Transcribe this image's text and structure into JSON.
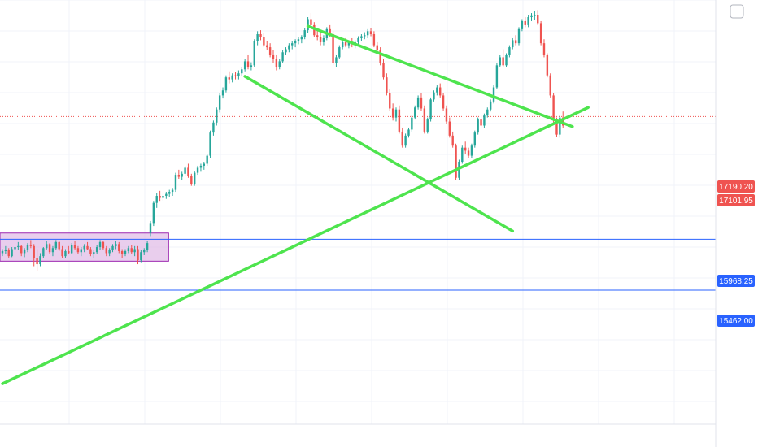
{
  "colors": {
    "bull": "#26a69a",
    "bear": "#ef5350",
    "trendline": "#4ee44e",
    "level_line": "#2962ff",
    "range_box_fill": "#e1bee7",
    "range_box_stroke": "#9c27b0",
    "grid": "#f0f3fa",
    "price_label_red": "#ef5350",
    "price_label_blue": "#2962ff"
  },
  "price_labels": {
    "current_high": "17190.20",
    "current_low": "17101.95",
    "level_upper": "15968.25",
    "level_lower": "15462.00"
  },
  "chart_data": {
    "type": "candlestick",
    "title": "",
    "xlabel": "",
    "ylabel": "",
    "ylim": [
      13900,
      18350
    ],
    "grid": true,
    "horizontal_levels": [
      15968.25,
      15462.0
    ],
    "current_price_line": 17190.2,
    "range_box": {
      "x_start": 0,
      "x_end": 52,
      "y_low": 15750,
      "y_high": 16030
    },
    "trendlines": [
      {
        "name": "",
        "from": [
          0,
          14530
        ],
        "to": [
          186,
          17280
        ]
      },
      {
        "name": "",
        "from": [
          97,
          18090
        ],
        "to": [
          181,
          17090
        ]
      },
      {
        "name": "",
        "from": [
          77,
          17590
        ],
        "to": [
          162,
          16050
        ]
      }
    ],
    "candles": [
      [
        15830,
        15870,
        15800,
        15850
      ],
      [
        15850,
        15900,
        15820,
        15860
      ],
      [
        15860,
        15880,
        15780,
        15800
      ],
      [
        15800,
        15890,
        15790,
        15870
      ],
      [
        15870,
        15920,
        15840,
        15890
      ],
      [
        15890,
        15940,
        15860,
        15900
      ],
      [
        15900,
        15910,
        15800,
        15830
      ],
      [
        15830,
        15880,
        15790,
        15860
      ],
      [
        15860,
        15930,
        15840,
        15910
      ],
      [
        15910,
        15960,
        15880,
        15900
      ],
      [
        15900,
        15920,
        15700,
        15780
      ],
      [
        15780,
        15870,
        15650,
        15720
      ],
      [
        15720,
        15830,
        15700,
        15800
      ],
      [
        15800,
        15890,
        15780,
        15880
      ],
      [
        15880,
        15950,
        15860,
        15920
      ],
      [
        15920,
        15930,
        15820,
        15840
      ],
      [
        15840,
        15900,
        15800,
        15880
      ],
      [
        15880,
        15960,
        15860,
        15940
      ],
      [
        15940,
        15950,
        15850,
        15870
      ],
      [
        15870,
        15900,
        15780,
        15800
      ],
      [
        15800,
        15870,
        15780,
        15850
      ],
      [
        15850,
        15900,
        15820,
        15830
      ],
      [
        15830,
        15930,
        15820,
        15910
      ],
      [
        15910,
        15950,
        15860,
        15880
      ],
      [
        15880,
        15900,
        15820,
        15840
      ],
      [
        15840,
        15890,
        15800,
        15870
      ],
      [
        15870,
        15920,
        15840,
        15900
      ],
      [
        15900,
        15940,
        15860,
        15870
      ],
      [
        15870,
        15890,
        15800,
        15820
      ],
      [
        15820,
        15860,
        15780,
        15840
      ],
      [
        15840,
        15910,
        15820,
        15890
      ],
      [
        15890,
        15960,
        15860,
        15940
      ],
      [
        15940,
        15950,
        15860,
        15880
      ],
      [
        15880,
        15900,
        15800,
        15830
      ],
      [
        15830,
        15880,
        15800,
        15860
      ],
      [
        15860,
        15920,
        15840,
        15900
      ],
      [
        15900,
        15950,
        15870,
        15920
      ],
      [
        15920,
        15940,
        15830,
        15850
      ],
      [
        15850,
        15870,
        15780,
        15820
      ],
      [
        15820,
        15870,
        15800,
        15850
      ],
      [
        15850,
        15900,
        15830,
        15880
      ],
      [
        15880,
        15910,
        15820,
        15840
      ],
      [
        15840,
        15900,
        15800,
        15870
      ],
      [
        15870,
        15900,
        15720,
        15760
      ],
      [
        15760,
        15860,
        15740,
        15840
      ],
      [
        15840,
        15880,
        15810,
        15860
      ],
      [
        15860,
        15950,
        15840,
        15930
      ],
      [
        16030,
        16150,
        16000,
        16130
      ],
      [
        16130,
        16350,
        16100,
        16330
      ],
      [
        16330,
        16430,
        16280,
        16400
      ],
      [
        16400,
        16450,
        16350,
        16380
      ],
      [
        16380,
        16420,
        16350,
        16400
      ],
      [
        16400,
        16440,
        16370,
        16420
      ],
      [
        16420,
        16460,
        16390,
        16440
      ],
      [
        16440,
        16480,
        16400,
        16460
      ],
      [
        16460,
        16630,
        16440,
        16610
      ],
      [
        16610,
        16660,
        16570,
        16590
      ],
      [
        16590,
        16640,
        16560,
        16620
      ],
      [
        16620,
        16700,
        16600,
        16680
      ],
      [
        16680,
        16720,
        16580,
        16600
      ],
      [
        16600,
        16620,
        16500,
        16520
      ],
      [
        16520,
        16650,
        16500,
        16630
      ],
      [
        16630,
        16700,
        16610,
        16680
      ],
      [
        16680,
        16720,
        16640,
        16700
      ],
      [
        16700,
        16740,
        16660,
        16720
      ],
      [
        16720,
        16820,
        16700,
        16800
      ],
      [
        16800,
        17050,
        16780,
        17030
      ],
      [
        17030,
        17150,
        17000,
        17130
      ],
      [
        17130,
        17280,
        17100,
        17260
      ],
      [
        17260,
        17420,
        17230,
        17400
      ],
      [
        17400,
        17480,
        17370,
        17450
      ],
      [
        17450,
        17600,
        17430,
        17580
      ],
      [
        17580,
        17640,
        17520,
        17560
      ],
      [
        17560,
        17620,
        17530,
        17600
      ],
      [
        17600,
        17630,
        17560,
        17590
      ],
      [
        17590,
        17650,
        17560,
        17620
      ],
      [
        17620,
        17680,
        17590,
        17660
      ],
      [
        17660,
        17760,
        17640,
        17740
      ],
      [
        17740,
        17800,
        17660,
        17680
      ],
      [
        17680,
        17730,
        17650,
        17700
      ],
      [
        17700,
        17960,
        17680,
        17940
      ],
      [
        17940,
        18040,
        17900,
        18010
      ],
      [
        18010,
        18050,
        17950,
        17980
      ],
      [
        17980,
        18020,
        17880,
        17900
      ],
      [
        17900,
        17940,
        17850,
        17880
      ],
      [
        17880,
        17920,
        17780,
        17800
      ],
      [
        17800,
        17850,
        17720,
        17760
      ],
      [
        17760,
        17800,
        17650,
        17680
      ],
      [
        17680,
        17760,
        17660,
        17740
      ],
      [
        17740,
        17850,
        17720,
        17830
      ],
      [
        17830,
        17880,
        17800,
        17860
      ],
      [
        17860,
        17920,
        17830,
        17900
      ],
      [
        17900,
        17940,
        17860,
        17920
      ],
      [
        17920,
        17960,
        17880,
        17940
      ],
      [
        17940,
        17980,
        17910,
        17960
      ],
      [
        17960,
        18000,
        17920,
        17980
      ],
      [
        17980,
        18070,
        17960,
        18050
      ],
      [
        18050,
        18180,
        18020,
        18160
      ],
      [
        18160,
        18220,
        18080,
        18100
      ],
      [
        18100,
        18130,
        17980,
        18000
      ],
      [
        18000,
        18050,
        17950,
        17980
      ],
      [
        17980,
        18020,
        17900,
        17930
      ],
      [
        17930,
        18000,
        17900,
        17970
      ],
      [
        17970,
        18080,
        17950,
        18060
      ],
      [
        18060,
        18100,
        17980,
        18010
      ],
      [
        18010,
        18040,
        17700,
        17720
      ],
      [
        17720,
        17800,
        17680,
        17780
      ],
      [
        17780,
        17900,
        17760,
        17880
      ],
      [
        17880,
        17950,
        17860,
        17930
      ],
      [
        17930,
        17970,
        17880,
        17900
      ],
      [
        17900,
        17950,
        17870,
        17930
      ],
      [
        17930,
        17970,
        17880,
        17910
      ],
      [
        17910,
        17950,
        17870,
        17930
      ],
      [
        17930,
        17990,
        17900,
        17970
      ],
      [
        17970,
        18010,
        17940,
        17990
      ],
      [
        17990,
        18030,
        17960,
        18000
      ],
      [
        18000,
        18060,
        17970,
        18040
      ],
      [
        18040,
        18070,
        17990,
        18010
      ],
      [
        18010,
        18040,
        17880,
        17900
      ],
      [
        17900,
        17930,
        17820,
        17850
      ],
      [
        17850,
        17880,
        17700,
        17720
      ],
      [
        17720,
        17760,
        17560,
        17580
      ],
      [
        17580,
        17620,
        17400,
        17420
      ],
      [
        17420,
        17460,
        17250,
        17270
      ],
      [
        17270,
        17320,
        17150,
        17180
      ],
      [
        17180,
        17280,
        17140,
        17260
      ],
      [
        17260,
        17300,
        17020,
        17040
      ],
      [
        17040,
        17080,
        16880,
        16900
      ],
      [
        16900,
        17020,
        16880,
        17000
      ],
      [
        17000,
        17080,
        16980,
        17060
      ],
      [
        17060,
        17200,
        17040,
        17180
      ],
      [
        17180,
        17300,
        17160,
        17280
      ],
      [
        17280,
        17400,
        17260,
        17380
      ],
      [
        17380,
        17420,
        17250,
        17270
      ],
      [
        17270,
        17300,
        17020,
        17040
      ],
      [
        17040,
        17180,
        17020,
        17160
      ],
      [
        17160,
        17380,
        17140,
        17360
      ],
      [
        17360,
        17450,
        17340,
        17430
      ],
      [
        17430,
        17500,
        17400,
        17480
      ],
      [
        17480,
        17520,
        17380,
        17400
      ],
      [
        17400,
        17420,
        17250,
        17270
      ],
      [
        17270,
        17300,
        17120,
        17140
      ],
      [
        17140,
        17180,
        16980,
        17000
      ],
      [
        17000,
        17040,
        16880,
        16900
      ],
      [
        16900,
        16920,
        16560,
        16580
      ],
      [
        16580,
        16760,
        16560,
        16740
      ],
      [
        16740,
        16900,
        16720,
        16880
      ],
      [
        16880,
        16940,
        16820,
        16850
      ],
      [
        16850,
        16880,
        16780,
        16800
      ],
      [
        16800,
        16920,
        16780,
        16900
      ],
      [
        16900,
        17050,
        16880,
        17030
      ],
      [
        17030,
        17180,
        17010,
        17160
      ],
      [
        17160,
        17200,
        17080,
        17100
      ],
      [
        17100,
        17220,
        17080,
        17200
      ],
      [
        17200,
        17280,
        17180,
        17260
      ],
      [
        17260,
        17360,
        17240,
        17340
      ],
      [
        17340,
        17500,
        17320,
        17480
      ],
      [
        17480,
        17720,
        17460,
        17700
      ],
      [
        17700,
        17800,
        17680,
        17780
      ],
      [
        17780,
        17860,
        17680,
        17700
      ],
      [
        17700,
        17820,
        17680,
        17800
      ],
      [
        17800,
        17900,
        17780,
        17880
      ],
      [
        17880,
        17970,
        17860,
        17950
      ],
      [
        17950,
        18000,
        17900,
        17920
      ],
      [
        17920,
        18080,
        17900,
        18060
      ],
      [
        18060,
        18160,
        18040,
        18140
      ],
      [
        18140,
        18180,
        18080,
        18100
      ],
      [
        18100,
        18200,
        18080,
        18180
      ],
      [
        18180,
        18220,
        18140,
        18190
      ],
      [
        18190,
        18240,
        18150,
        18200
      ],
      [
        18200,
        18250,
        18100,
        18120
      ],
      [
        18120,
        18140,
        17900,
        17920
      ],
      [
        17920,
        17960,
        17780,
        17800
      ],
      [
        17800,
        17820,
        17580,
        17600
      ],
      [
        17600,
        17620,
        17380,
        17400
      ],
      [
        17400,
        17420,
        17130,
        17150
      ],
      [
        17150,
        17180,
        16990,
        17010
      ],
      [
        17010,
        17200,
        16980,
        17180
      ],
      [
        17180,
        17240,
        17080,
        17100
      ]
    ]
  }
}
